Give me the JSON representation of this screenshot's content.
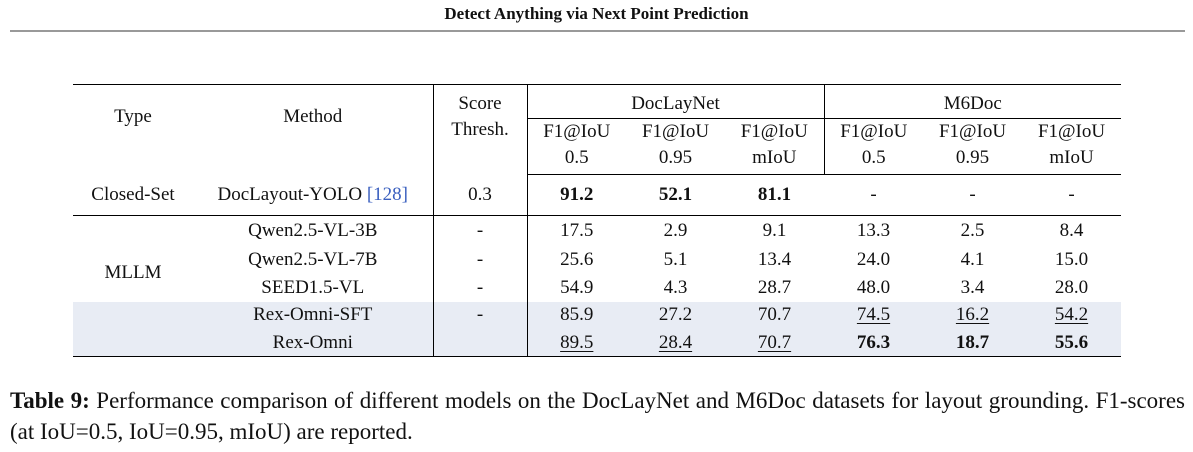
{
  "header": {
    "title": "Detect Anything via Next Point Prediction"
  },
  "table": {
    "head": {
      "type": "Type",
      "method": "Method",
      "score": [
        "Score",
        "Thresh."
      ],
      "groups": [
        "DocLayNet",
        "M6Doc"
      ],
      "metrics": [
        [
          "F1@IoU",
          "0.5"
        ],
        [
          "F1@IoU",
          "0.95"
        ],
        [
          "F1@IoU",
          "mIoU"
        ],
        [
          "F1@IoU",
          "0.5"
        ],
        [
          "F1@IoU",
          "0.95"
        ],
        [
          "F1@IoU",
          "mIoU"
        ]
      ]
    },
    "rows": [
      {
        "type": "Closed-Set",
        "method": "DocLayout-YOLO",
        "citation": "[128]",
        "score": "0.3",
        "values": [
          "91.2",
          "52.1",
          "81.1",
          "-",
          "-",
          "-"
        ]
      },
      {
        "type": "MLLM",
        "method": "Qwen2.5-VL-3B",
        "score": "-",
        "values": [
          "17.5",
          "2.9",
          "9.1",
          "13.3",
          "2.5",
          "8.4"
        ]
      },
      {
        "method": "Qwen2.5-VL-7B",
        "score": "-",
        "values": [
          "25.6",
          "5.1",
          "13.4",
          "24.0",
          "4.1",
          "15.0"
        ]
      },
      {
        "method": "SEED1.5-VL",
        "score": "-",
        "values": [
          "54.9",
          "4.3",
          "28.7",
          "48.0",
          "3.4",
          "28.0"
        ]
      },
      {
        "method": "Rex-Omni-SFT",
        "score": "-",
        "values": [
          "85.9",
          "27.2",
          "70.7",
          "74.5",
          "16.2",
          "54.2"
        ]
      },
      {
        "method": "Rex-Omni",
        "values": [
          "89.5",
          "28.4",
          "70.7",
          "76.3",
          "18.7",
          "55.6"
        ]
      }
    ]
  },
  "caption": {
    "label": "Table 9:",
    "text": "Performance comparison of different models on the DocLayNet and M6Doc datasets for layout grounding. F1-scores (at IoU=0.5, IoU=0.95, mIoU) are reported."
  }
}
